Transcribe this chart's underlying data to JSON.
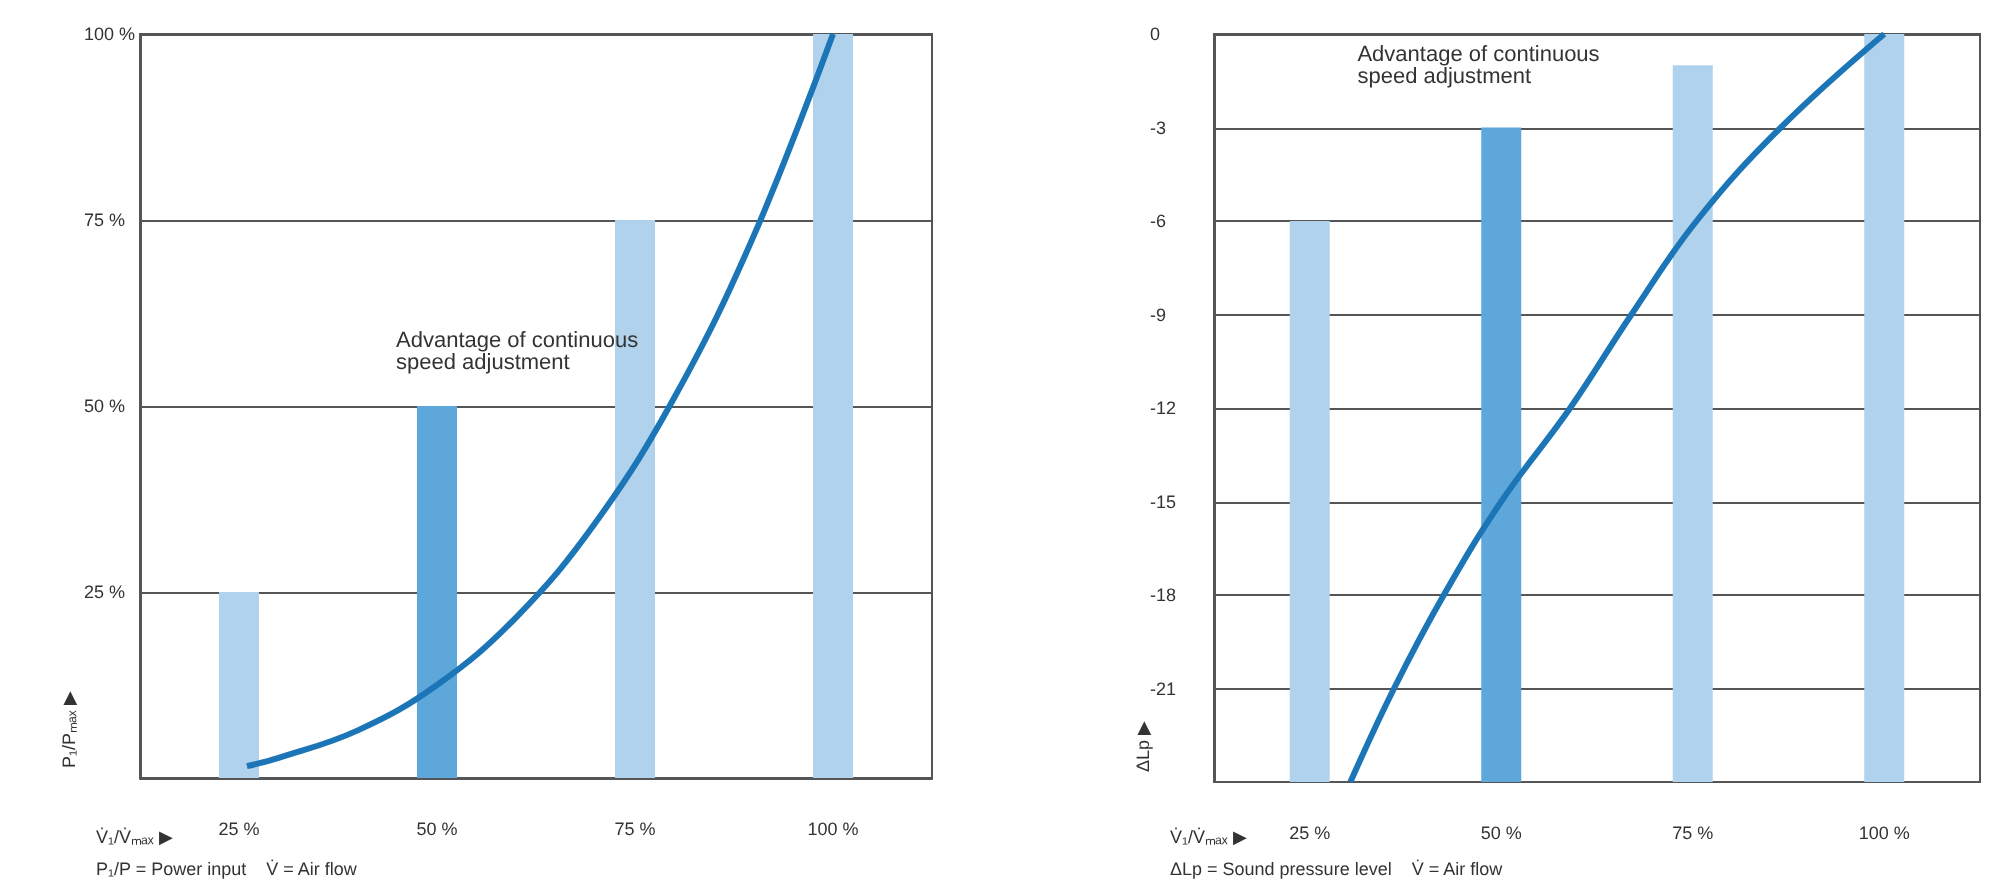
{
  "chart_data": [
    {
      "type": "bar",
      "xlabel": "V̇₁/V̇ₘₐₓ ▶",
      "ylabel": "P₁/Pₘₐₓ ▶",
      "annotations": [
        "Advantage of continuous\nspeed adjustment",
        "P₁/P = Power input    V̇ = Air flow"
      ],
      "xlim": [
        12.5,
        112.5
      ],
      "xticks": [
        {
          "value": 25,
          "label": "25 %"
        },
        {
          "value": 50,
          "label": "50 %"
        },
        {
          "value": 75,
          "label": "75 %"
        },
        {
          "value": 100,
          "label": "100 %"
        }
      ],
      "ylim": [
        0,
        100
      ],
      "yticks": [
        {
          "value": 25,
          "label": "25 %"
        },
        {
          "value": 50,
          "label": "50 %"
        },
        {
          "value": 75,
          "label": "75 %"
        },
        {
          "value": 100,
          "label": "100 %"
        }
      ],
      "grid": "y",
      "series": [
        {
          "x": [
            25,
            50,
            75,
            100
          ],
          "values": [
            25,
            50,
            75,
            100
          ],
          "colors": [
            "#b0d2ed",
            "#5ea7da",
            "#b0d2ed",
            "#b0d2ed"
          ]
        },
        {
          "type": "line",
          "color": "#1b75b7",
          "x": [
            26,
            30,
            40,
            50,
            60,
            70,
            80,
            90,
            100
          ],
          "values": [
            1.6,
            2.7,
            6.4,
            12.5,
            21.6,
            34.3,
            51.2,
            72.9,
            100
          ]
        }
      ]
    },
    {
      "type": "bar",
      "xlabel": "V̇₁/V̇ₘₐₓ ▶",
      "ylabel": "ΔLp ▶",
      "annotations": [
        "Advantage of continuous\nspeed adjustment",
        "ΔLp = Sound pressure level    V̇ = Air flow"
      ],
      "xlim": [
        12.5,
        112.5
      ],
      "xticks": [
        {
          "value": 25,
          "label": "25 %"
        },
        {
          "value": 50,
          "label": "50 %"
        },
        {
          "value": 75,
          "label": "75 %"
        },
        {
          "value": 100,
          "label": "100 %"
        }
      ],
      "ylim": [
        -24,
        0
      ],
      "yticks": [
        0,
        -3,
        -6,
        -9,
        -12,
        -15,
        -18,
        -21
      ],
      "grid": "y",
      "series": [
        {
          "x": [
            25,
            50,
            75,
            100
          ],
          "base": [
            -24,
            -24,
            -24,
            -24
          ],
          "values": [
            18,
            21,
            23,
            24
          ],
          "colors": [
            "#b0d2ed",
            "#5ea7da",
            "#b0d2ed",
            "#b0d2ed"
          ]
        },
        {
          "type": "line",
          "color": "#1b75b7",
          "x": [
            30.3,
            36,
            42.5,
            50,
            59,
            67,
            75.5,
            86.5,
            100
          ],
          "values": [
            -24,
            -21,
            -18,
            -15,
            -12,
            -9,
            -6,
            -3,
            0
          ]
        }
      ]
    }
  ]
}
